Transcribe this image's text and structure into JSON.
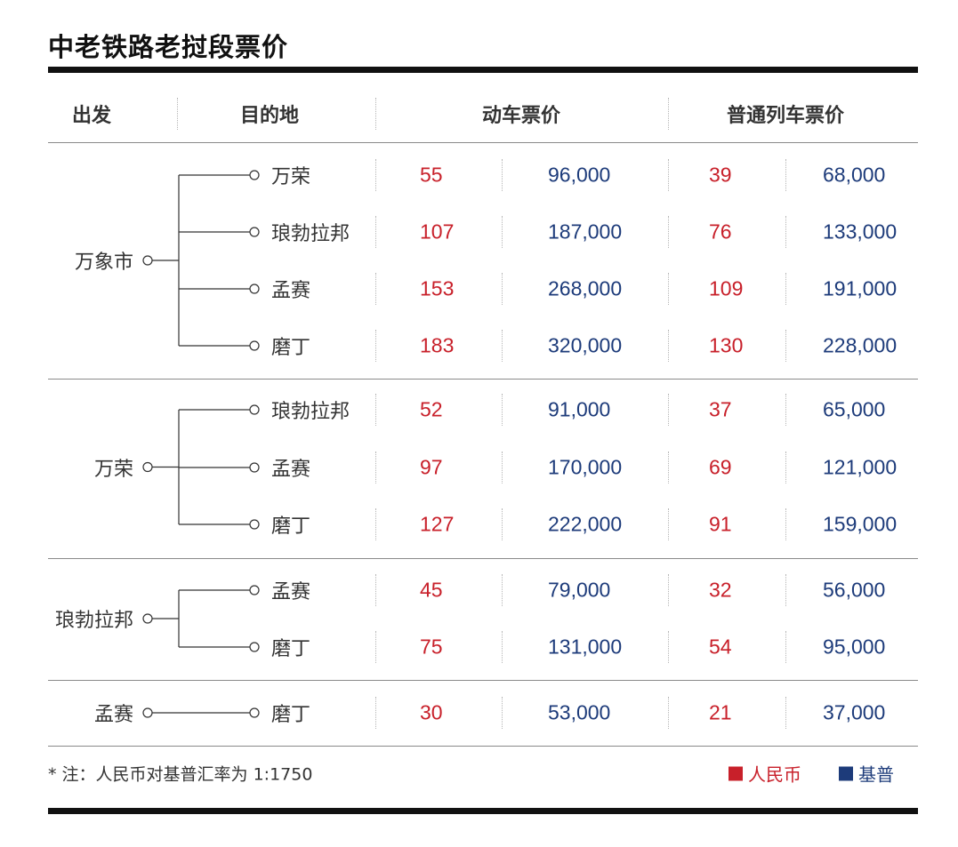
{
  "title": "中老铁路老挝段票价",
  "headers": {
    "origin": "出发",
    "destination": "目的地",
    "emu": "动车票价",
    "regular": "普通列车票价"
  },
  "groups": [
    {
      "origin": "万象市",
      "routes": [
        {
          "dest": "万荣",
          "emu_rmb": "55",
          "emu_kip": "96,000",
          "reg_rmb": "39",
          "reg_kip": "68,000"
        },
        {
          "dest": "琅勃拉邦",
          "emu_rmb": "107",
          "emu_kip": "187,000",
          "reg_rmb": "76",
          "reg_kip": "133,000"
        },
        {
          "dest": "孟赛",
          "emu_rmb": "153",
          "emu_kip": "268,000",
          "reg_rmb": "109",
          "reg_kip": "191,000"
        },
        {
          "dest": "磨丁",
          "emu_rmb": "183",
          "emu_kip": "320,000",
          "reg_rmb": "130",
          "reg_kip": "228,000"
        }
      ]
    },
    {
      "origin": "万荣",
      "routes": [
        {
          "dest": "琅勃拉邦",
          "emu_rmb": "52",
          "emu_kip": "91,000",
          "reg_rmb": "37",
          "reg_kip": "65,000"
        },
        {
          "dest": "孟赛",
          "emu_rmb": "97",
          "emu_kip": "170,000",
          "reg_rmb": "69",
          "reg_kip": "121,000"
        },
        {
          "dest": "磨丁",
          "emu_rmb": "127",
          "emu_kip": "222,000",
          "reg_rmb": "91",
          "reg_kip": "159,000"
        }
      ]
    },
    {
      "origin": "琅勃拉邦",
      "routes": [
        {
          "dest": "孟赛",
          "emu_rmb": "45",
          "emu_kip": "79,000",
          "reg_rmb": "32",
          "reg_kip": "56,000"
        },
        {
          "dest": "磨丁",
          "emu_rmb": "75",
          "emu_kip": "131,000",
          "reg_rmb": "54",
          "reg_kip": "95,000"
        }
      ]
    },
    {
      "origin": "孟赛",
      "routes": [
        {
          "dest": "磨丁",
          "emu_rmb": "30",
          "emu_kip": "53,000",
          "reg_rmb": "21",
          "reg_kip": "37,000"
        }
      ]
    }
  ],
  "note": "* 注：人民币对基普汇率为 1:1750",
  "legend": {
    "rmb_label": "人民币",
    "kip_label": "基普"
  },
  "colors": {
    "rmb": "#c8202a",
    "kip": "#1d3b7a"
  }
}
